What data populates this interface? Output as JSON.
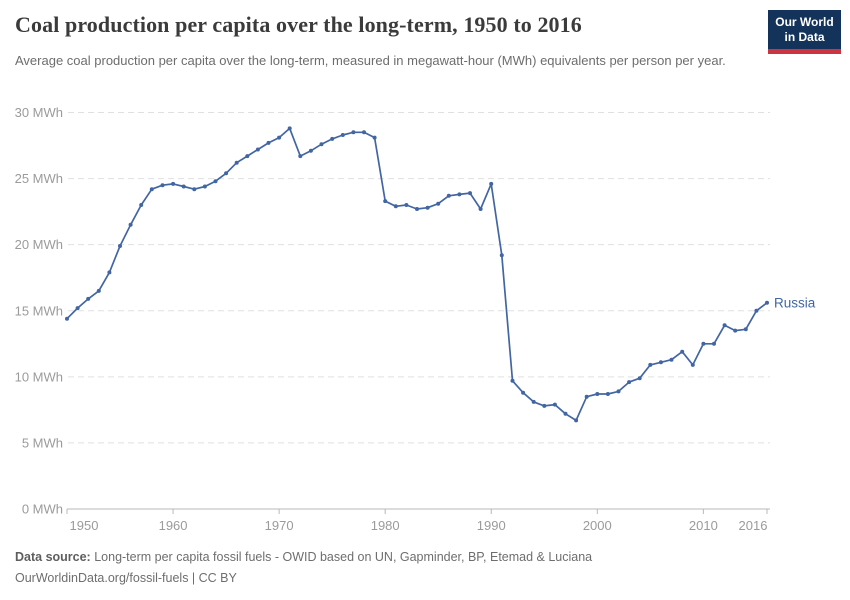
{
  "header": {
    "title": "Coal production per capita over the long-term, 1950 to 2016",
    "subtitle": "Average coal production per capita over the long-term, measured in megawatt-hour (MWh) equivalents per person per year.",
    "logo": {
      "line1": "Our World",
      "line2": "in Data",
      "bg_color": "#14335b",
      "accent_color": "#cb3440"
    }
  },
  "chart_data": {
    "type": "line",
    "title": "Coal production per capita over the long-term, 1950 to 2016",
    "unit": "MWh",
    "xlim": [
      1950,
      2016
    ],
    "ylim": [
      0,
      30
    ],
    "grid": "horizontal-dashed",
    "legend_position": "end-of-line-label",
    "yticks": [
      0,
      5,
      10,
      15,
      20,
      25,
      30
    ],
    "ytick_labels": [
      "0 MWh",
      "5 MWh",
      "10 MWh",
      "15 MWh",
      "20 MWh",
      "25 MWh",
      "30 MWh"
    ],
    "xticks": [
      1950,
      1960,
      1970,
      1980,
      1990,
      2000,
      2010,
      2016
    ],
    "xtick_labels": [
      "1950",
      "1960",
      "1970",
      "1980",
      "1990",
      "2000",
      "2010",
      "2016"
    ],
    "series": [
      {
        "name": "Russia",
        "color": "#4266a3",
        "x": [
          1950,
          1951,
          1952,
          1953,
          1954,
          1955,
          1956,
          1957,
          1958,
          1959,
          1960,
          1961,
          1962,
          1963,
          1964,
          1965,
          1966,
          1967,
          1968,
          1969,
          1970,
          1971,
          1972,
          1973,
          1974,
          1975,
          1976,
          1977,
          1978,
          1979,
          1980,
          1981,
          1982,
          1983,
          1984,
          1985,
          1986,
          1987,
          1988,
          1989,
          1990,
          1991,
          1992,
          1993,
          1994,
          1995,
          1996,
          1997,
          1998,
          1999,
          2000,
          2001,
          2002,
          2003,
          2004,
          2005,
          2006,
          2007,
          2008,
          2009,
          2010,
          2011,
          2012,
          2013,
          2014,
          2015,
          2016
        ],
        "values": [
          14.4,
          15.2,
          15.9,
          16.5,
          17.9,
          19.9,
          21.5,
          23.0,
          24.2,
          24.5,
          24.6,
          24.4,
          24.2,
          24.4,
          24.8,
          25.4,
          26.2,
          26.7,
          27.2,
          27.7,
          28.1,
          28.8,
          26.7,
          27.1,
          27.6,
          28.0,
          28.3,
          28.5,
          28.5,
          28.1,
          23.3,
          22.9,
          23.0,
          22.7,
          22.8,
          23.1,
          23.7,
          23.8,
          23.9,
          22.7,
          24.6,
          19.2,
          9.7,
          8.8,
          8.1,
          7.8,
          7.9,
          7.2,
          6.7,
          8.5,
          8.7,
          8.7,
          8.9,
          9.6,
          9.9,
          10.9,
          11.1,
          11.3,
          11.9,
          10.9,
          12.5,
          12.5,
          13.9,
          13.5,
          13.6,
          15.0,
          15.6
        ]
      }
    ],
    "colors": {
      "gridline": "#e0e0e0",
      "axis_line": "#b8b8b8",
      "tick_label": "#9b9b9b"
    }
  },
  "footer": {
    "source_label": "Data source:",
    "source_text": " Long-term per capita fossil fuels - OWID based on UN, Gapminder, BP, Etemad & Luciana",
    "link_line": "OurWorldinData.org/fossil-fuels | CC BY"
  }
}
